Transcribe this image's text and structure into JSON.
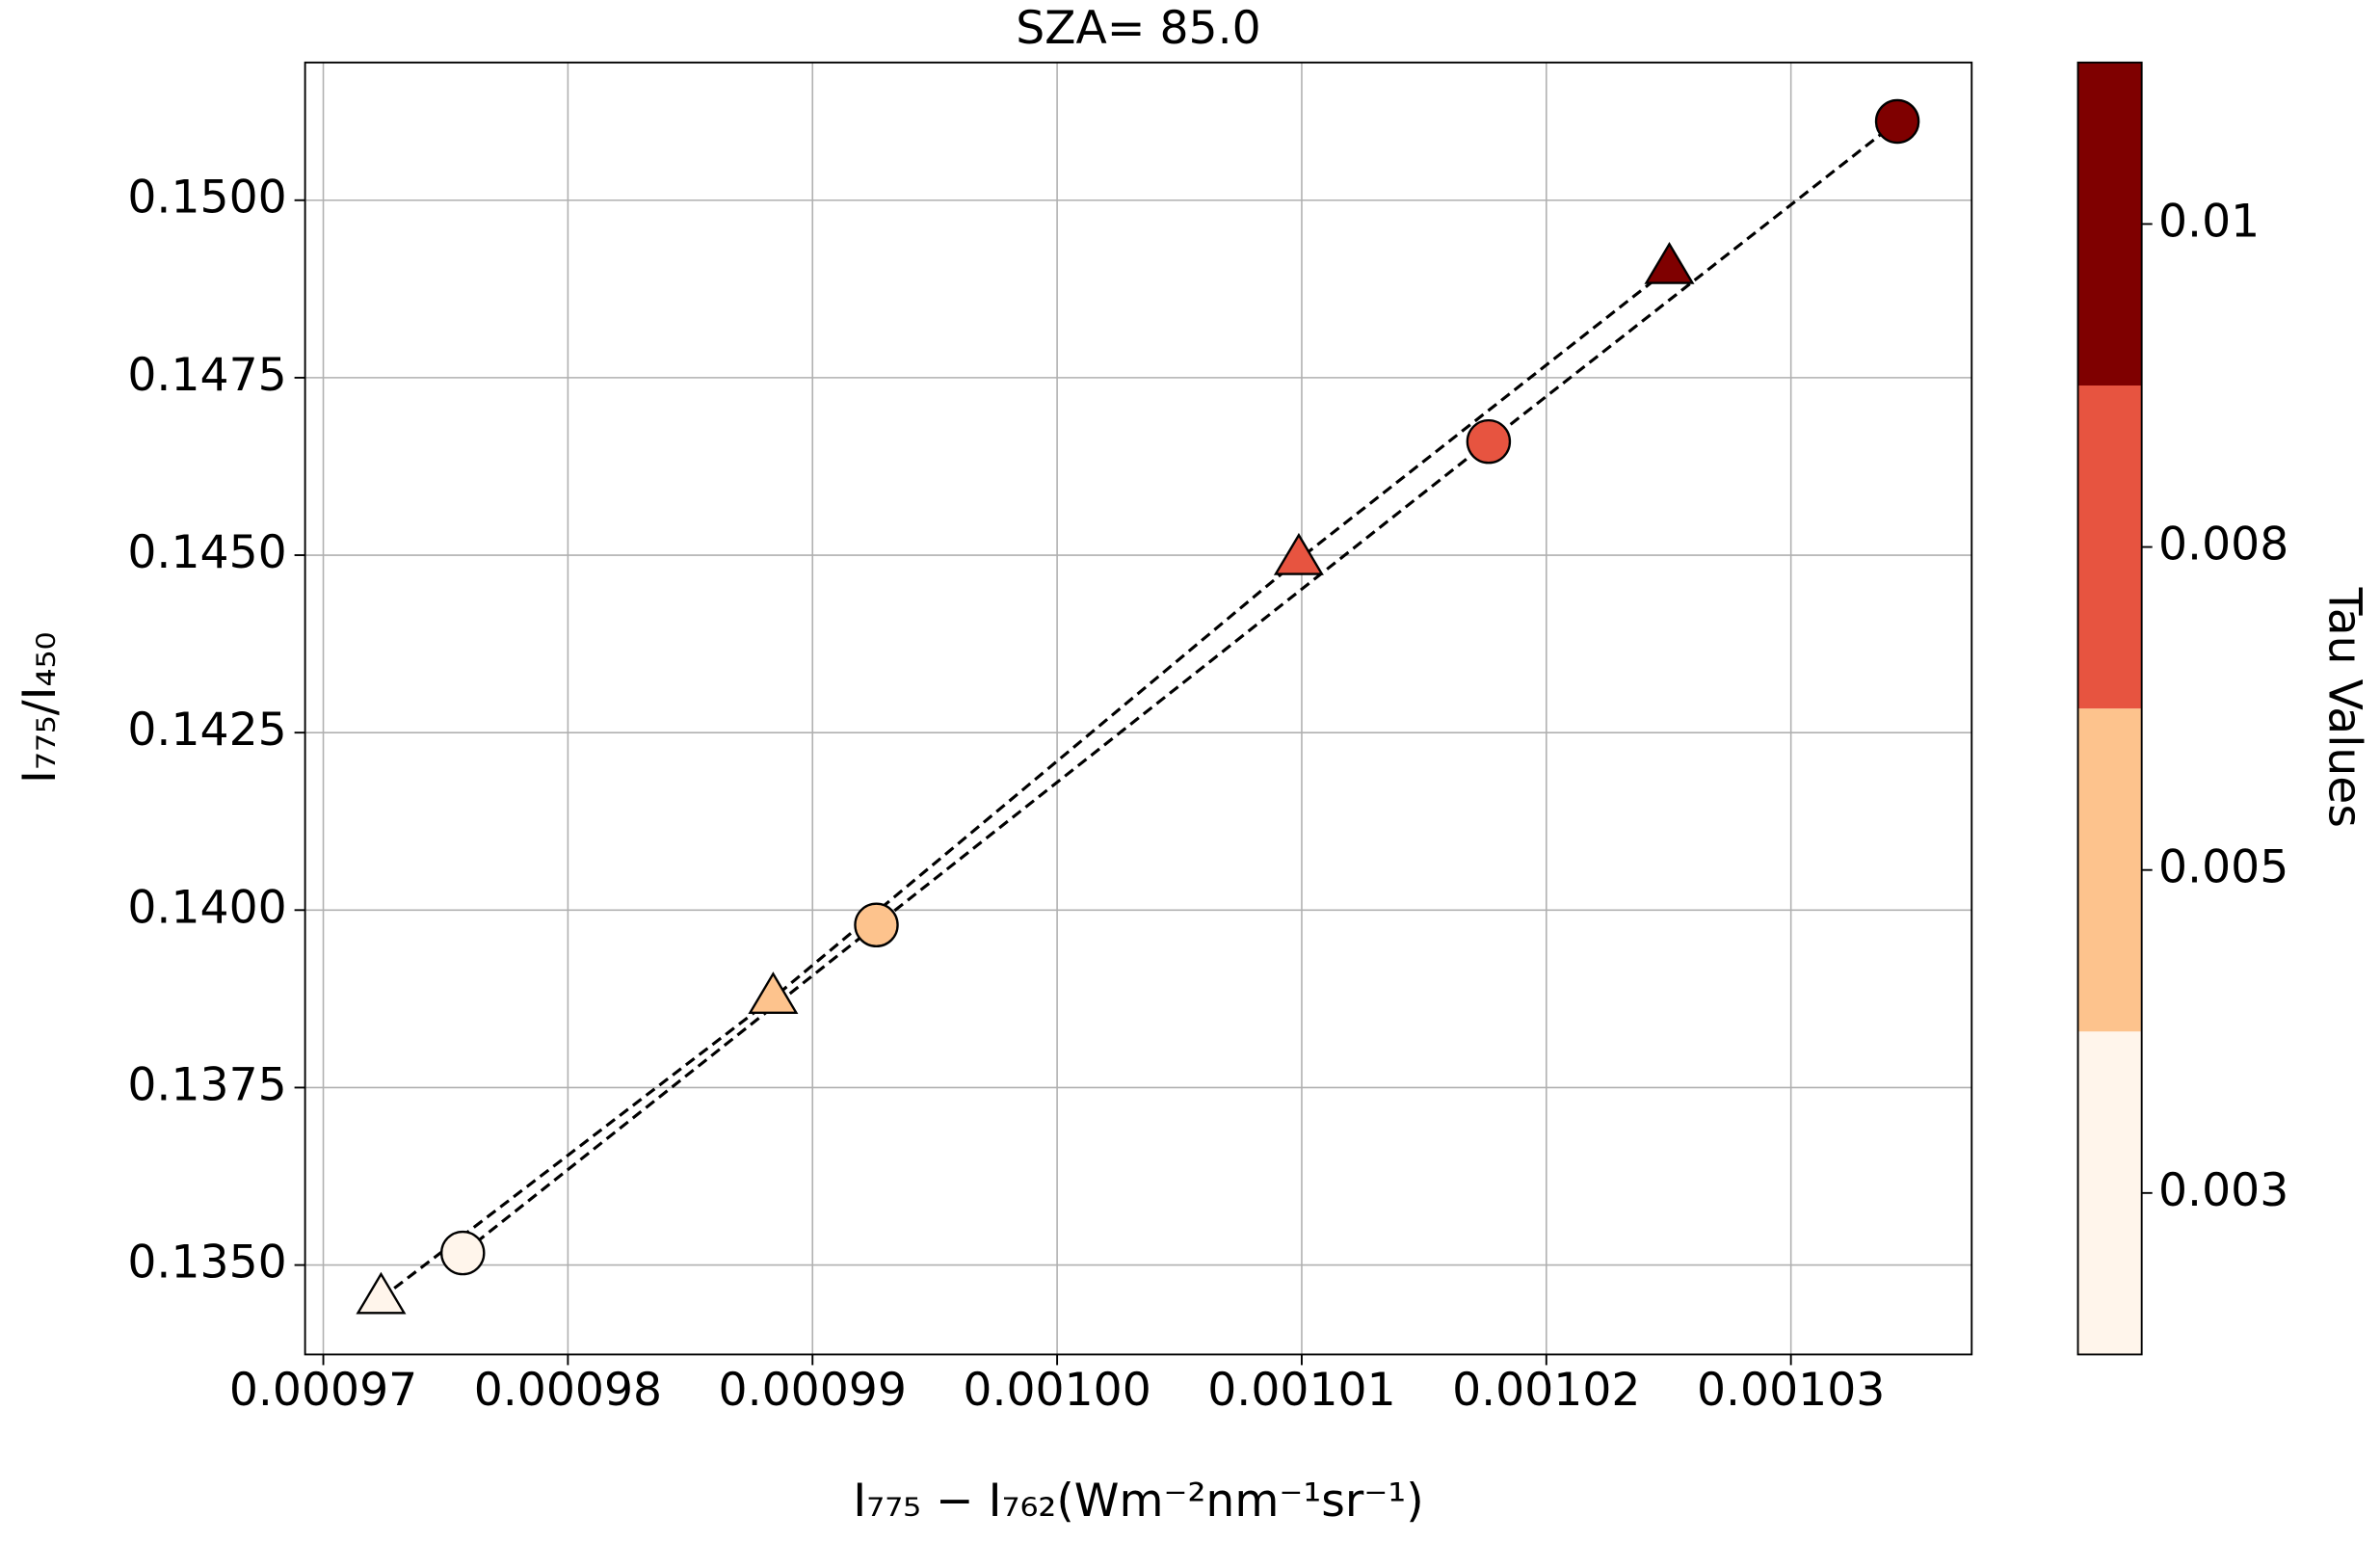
{
  "chart_data": {
    "type": "scatter",
    "title": "SZA= 85.0",
    "x_label": "I₇₇₅ − I₇₆₂(Wm⁻²nm⁻¹sr⁻¹)",
    "y_label": "I₇₇₅/I₄₅₀",
    "xlim": [
      0.000969255,
      0.00103739
    ],
    "ylim": [
      0.13374,
      0.15194
    ],
    "xticks": [
      0.00097,
      0.00098,
      0.00099,
      {
        "value": 0.001,
        "label": "0.00100"
      },
      0.00101,
      0.00102,
      0.00103
    ],
    "yticks": [
      {
        "value": 0.135,
        "label": "0.1350"
      },
      {
        "value": 0.1375,
        "label": "0.1375"
      },
      {
        "value": 0.14,
        "label": "0.1400"
      },
      {
        "value": 0.1425,
        "label": "0.1425"
      },
      {
        "value": 0.145,
        "label": "0.1450"
      },
      {
        "value": 0.1475,
        "label": "0.1475"
      },
      {
        "value": 0.15,
        "label": "0.1500"
      }
    ],
    "grid": true,
    "series": [
      {
        "marker": "circle",
        "x": [
          0.0009757,
          0.00099261,
          0.00101764,
          0.00103435
        ],
        "values": [
          0.13517,
          0.13979,
          0.1466,
          0.15111
        ],
        "colors": [
          "#fff5eb",
          "#fdc38d",
          "#e75440",
          "#7f0000"
        ]
      },
      {
        "marker": "triangle",
        "x": [
          0.00097236,
          0.00098839,
          0.00100988,
          0.00102503
        ],
        "values": [
          0.13453,
          0.13876,
          0.14494,
          0.14904
        ],
        "colors": [
          "#fff5eb",
          "#fdc38d",
          "#e75440",
          "#7f0000"
        ]
      }
    ],
    "colorbar": {
      "label": "Tau Values",
      "ticks": [
        0.003,
        0.005,
        0.008,
        0.01
      ],
      "colors": [
        "#fff5eb",
        "#fdc38d",
        "#e75440",
        "#7f0000"
      ]
    }
  }
}
